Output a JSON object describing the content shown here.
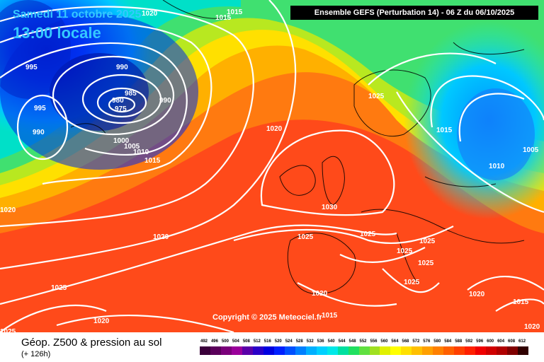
{
  "header": {
    "date": "Samedi 11 octobre 2025",
    "time": "13:00 locale",
    "run_info": "Ensemble GEFS  (Perturbation 14)  -  06 Z du 06/10/2025",
    "copyright": "Copyright © 2025 Meteociel.fr"
  },
  "footer": {
    "title": "Géop. Z500 & pression au sol",
    "forecast": "(+ 126h)"
  },
  "isobars": [
    "1020",
    "1015",
    "995",
    "990",
    "985",
    "980",
    "975",
    "990",
    "995",
    "990",
    "1000",
    "1005",
    "1010",
    "1015",
    "1020",
    "1025",
    "1030",
    "1025",
    "1020",
    "1025",
    "1025",
    "1025",
    "1025",
    "1025",
    "1025",
    "1020",
    "1020",
    "1015",
    "1015",
    "1010",
    "1005",
    "1015",
    "1020",
    "1025",
    "1020",
    "1020",
    "1015",
    "1015"
  ],
  "legend": {
    "values": [
      "492",
      "496",
      "500",
      "504",
      "508",
      "512",
      "516",
      "520",
      "524",
      "528",
      "532",
      "536",
      "540",
      "544",
      "548",
      "552",
      "556",
      "560",
      "564",
      "568",
      "572",
      "576",
      "580",
      "584",
      "588",
      "592",
      "596",
      "600",
      "604",
      "608",
      "612"
    ],
    "colors": [
      "#3a003a",
      "#5a005a",
      "#7a007a",
      "#9a009a",
      "#5a00a8",
      "#2a00c8",
      "#0000e0",
      "#0020ff",
      "#0050ff",
      "#0080ff",
      "#00b0ff",
      "#00d0ff",
      "#00e8e8",
      "#00e0a0",
      "#20e060",
      "#60e040",
      "#a0e020",
      "#e0f000",
      "#ffff00",
      "#ffe000",
      "#ffc000",
      "#ffa000",
      "#ff8000",
      "#ff6000",
      "#ff4000",
      "#ff2000",
      "#f00000",
      "#d00000",
      "#b00000",
      "#800000",
      "#300000"
    ]
  }
}
